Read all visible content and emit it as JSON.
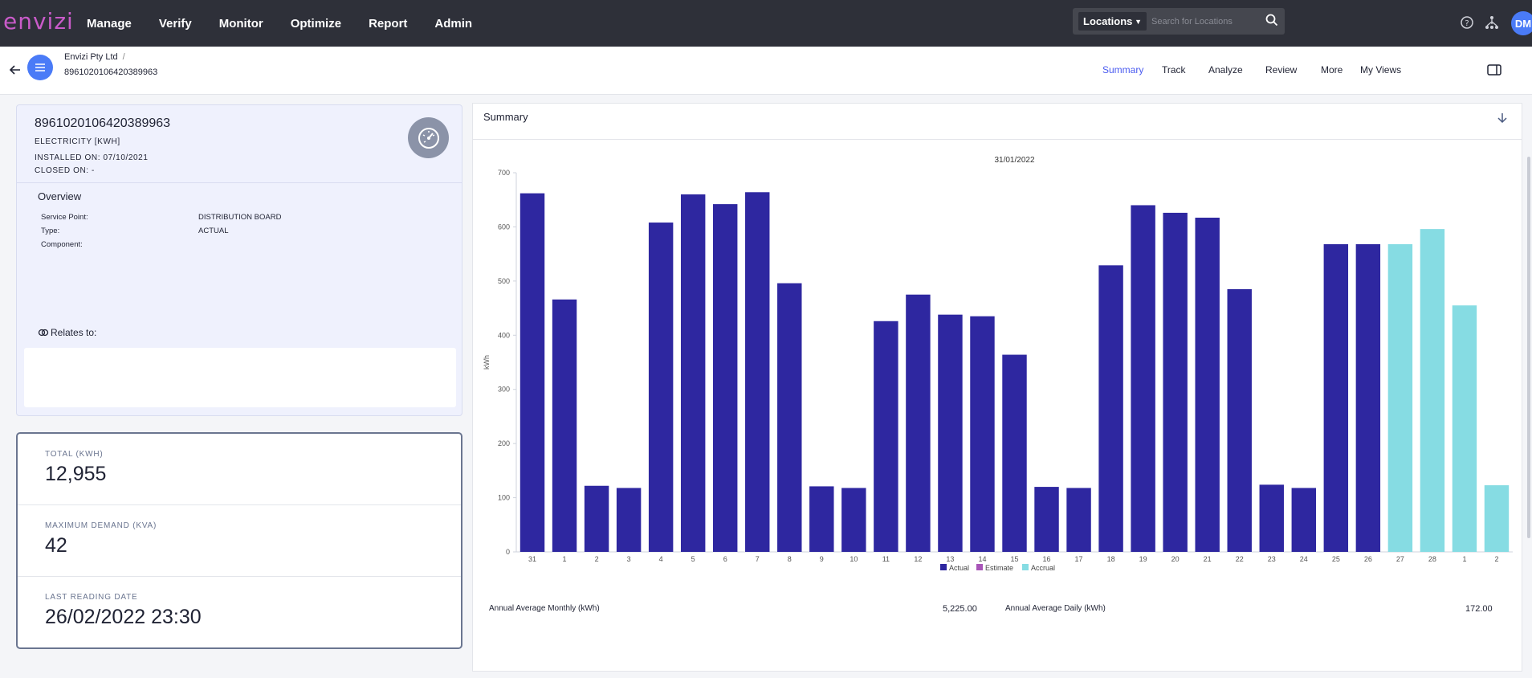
{
  "app": {
    "logo": "envizi"
  },
  "nav": {
    "items": [
      "Manage",
      "Verify",
      "Monitor",
      "Optimize",
      "Report",
      "Admin"
    ]
  },
  "search": {
    "scope": "Locations",
    "placeholder": "Search for Locations"
  },
  "user": {
    "initials": "DM"
  },
  "breadcrumb": {
    "org": "Envizi Pty Ltd",
    "separator": "/",
    "current": "8961020106420389963"
  },
  "tabs": [
    {
      "label": "Summary",
      "active": true
    },
    {
      "label": "Track",
      "active": false
    },
    {
      "label": "Analyze",
      "active": false
    },
    {
      "label": "Review",
      "active": false
    },
    {
      "label": "More",
      "active": false
    },
    {
      "label": "My Views",
      "active": false
    }
  ],
  "meter": {
    "id": "8961020106420389963",
    "type": "ELECTRICITY [KWH]",
    "installed": "INSTALLED ON: 07/10/2021",
    "closed": "CLOSED ON: -",
    "overview_title": "Overview",
    "overview": [
      {
        "label": "Service Point:",
        "value": "DISTRIBUTION BOARD"
      },
      {
        "label": "Type:",
        "value": "ACTUAL"
      },
      {
        "label": "Component:",
        "value": ""
      }
    ],
    "relates_label": "Relates to:"
  },
  "stats": [
    {
      "label": "TOTAL (KWH)",
      "value": "12,955"
    },
    {
      "label": "MAXIMUM DEMAND (KVA)",
      "value": "42"
    },
    {
      "label": "LAST READING DATE",
      "value": "26/02/2022 23:30"
    }
  ],
  "summary": {
    "title": "Summary",
    "annual_monthly_label": "Annual Average Monthly (kWh)",
    "annual_monthly_value": "5,225.00",
    "annual_daily_label": "Annual Average Daily (kWh)",
    "annual_daily_value": "172.00"
  },
  "colors": {
    "actual": "#2e27a0",
    "estimate": "#a855b8",
    "accrual": "#86dce3",
    "accent": "#4a5bf0"
  },
  "chart_data": {
    "type": "bar",
    "title": "31/01/2022",
    "ylabel": "kWh",
    "xlabel": "",
    "ylim": [
      0,
      700
    ],
    "yticks": [
      0,
      100,
      200,
      300,
      400,
      500,
      600,
      700
    ],
    "legend": [
      "Actual",
      "Estimate",
      "Accrual"
    ],
    "legend_position": "bottom",
    "categories": [
      "31",
      "1",
      "2",
      "3",
      "4",
      "5",
      "6",
      "7",
      "8",
      "9",
      "10",
      "11",
      "12",
      "13",
      "14",
      "15",
      "16",
      "17",
      "18",
      "19",
      "20",
      "21",
      "22",
      "23",
      "24",
      "25",
      "26",
      "27",
      "28",
      "1",
      "2"
    ],
    "series": [
      {
        "name": "Actual",
        "values": [
          662,
          466,
          122,
          118,
          608,
          660,
          642,
          664,
          496,
          121,
          118,
          426,
          475,
          438,
          435,
          364,
          120,
          118,
          529,
          640,
          626,
          617,
          485,
          124,
          118,
          568,
          568,
          null,
          null,
          null,
          null
        ]
      },
      {
        "name": "Accrual",
        "values": [
          null,
          null,
          null,
          null,
          null,
          null,
          null,
          null,
          null,
          null,
          null,
          null,
          null,
          null,
          null,
          null,
          null,
          null,
          null,
          null,
          null,
          null,
          null,
          null,
          null,
          null,
          null,
          568,
          596,
          455,
          123
        ]
      }
    ]
  }
}
